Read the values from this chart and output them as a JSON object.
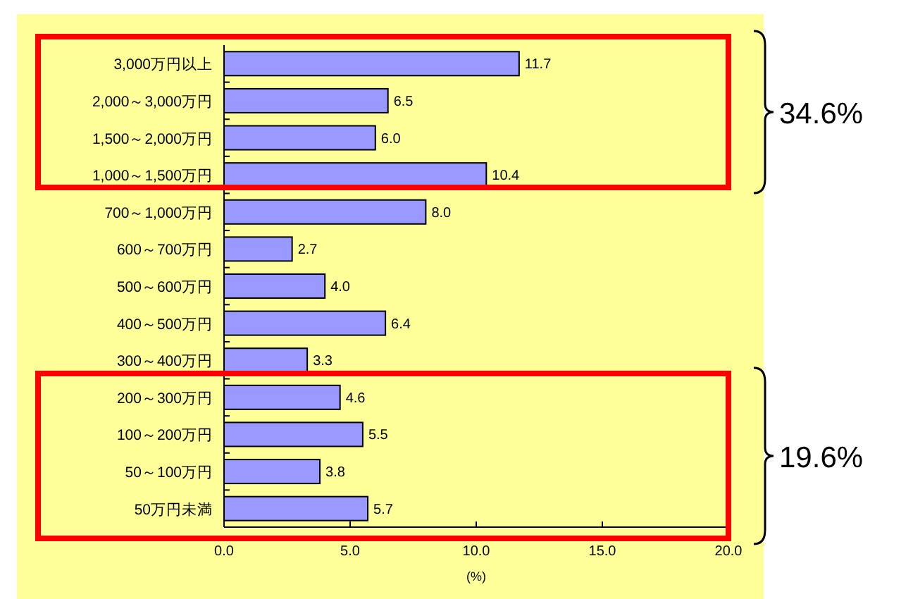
{
  "chart_data": {
    "type": "bar",
    "orientation": "horizontal",
    "xlabel": "(%)",
    "categories": [
      "3,000万円以上",
      "2,000～3,000万円",
      "1,500～2,000万円",
      "1,000～1,500万円",
      "700～1,000万円",
      "600～700万円",
      "500～600万円",
      "400～500万円",
      "300～400万円",
      "200～300万円",
      "100～200万円",
      "50～100万円",
      "50万円未満"
    ],
    "values": [
      11.7,
      6.5,
      6.0,
      10.4,
      8.0,
      2.7,
      4.0,
      6.4,
      3.3,
      4.6,
      5.5,
      3.8,
      5.7
    ],
    "color": "#9999ff",
    "value_labels": [
      "11.7",
      "6.5",
      "6.0",
      "10.4",
      "8.0",
      "2.7",
      "4.0",
      "6.4",
      "3.3",
      "4.6",
      "5.5",
      "3.8",
      "5.7"
    ],
    "xlim": [
      0,
      20
    ],
    "xticks": [
      {
        "value": 0,
        "label": "0.0"
      },
      {
        "value": 5,
        "label": "5.0"
      },
      {
        "value": 10,
        "label": "10.0"
      },
      {
        "value": 15,
        "label": "15.0"
      },
      {
        "value": 20,
        "label": "20.0"
      }
    ],
    "annotations": [
      "34.6%",
      "19.6%"
    ]
  }
}
